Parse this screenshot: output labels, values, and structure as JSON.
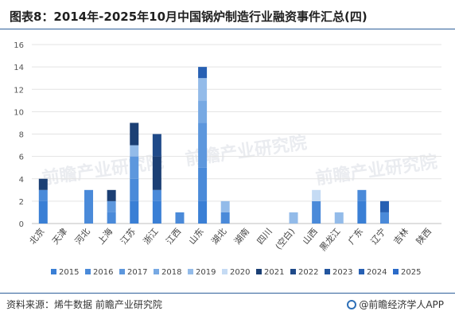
{
  "title": "图表8：2014年-2025年10月中国锅炉制造行业融资事件汇总(四)",
  "source": "资料来源：烯牛数据 前瞻产业研究院",
  "brand": "@前瞻经济学人APP",
  "watermark": "前瞻产业研究院",
  "chart_data": {
    "type": "bar",
    "stacked": true,
    "categories": [
      "北京",
      "天津",
      "河北",
      "上海",
      "江苏",
      "浙江",
      "江西",
      "山东",
      "湖北",
      "湖南",
      "四川",
      "(空白)",
      "山西",
      "黑龙江",
      "广东",
      "辽宁",
      "吉林",
      "陕西"
    ],
    "ylim": [
      0,
      16
    ],
    "yticks": [
      0,
      2,
      4,
      6,
      8,
      10,
      12,
      14,
      16
    ],
    "grid": true,
    "legend_position": "bottom",
    "series": [
      {
        "name": "2015",
        "color": "#3a7fd5",
        "values": [
          2,
          0,
          0,
          0,
          2,
          2,
          0,
          2,
          0,
          0,
          0,
          0,
          0,
          0,
          2,
          0,
          0,
          0
        ]
      },
      {
        "name": "2016",
        "color": "#4a8ad9",
        "values": [
          1,
          0,
          3,
          1,
          2,
          1,
          1,
          3,
          1,
          0,
          0,
          0,
          2,
          0,
          1,
          1,
          0,
          0
        ]
      },
      {
        "name": "2017",
        "color": "#5d97dd",
        "values": [
          0,
          0,
          0,
          1,
          2,
          0,
          0,
          4,
          0,
          0,
          0,
          0,
          0,
          0,
          0,
          0,
          0,
          0
        ]
      },
      {
        "name": "2018",
        "color": "#77a9e3",
        "values": [
          0,
          0,
          0,
          0,
          0,
          0,
          0,
          2,
          0,
          0,
          0,
          0,
          0,
          0,
          0,
          0,
          0,
          0
        ]
      },
      {
        "name": "2019",
        "color": "#93bbe9",
        "values": [
          0,
          0,
          0,
          0,
          1,
          0,
          0,
          2,
          1,
          0,
          0,
          1,
          0,
          1,
          0,
          0,
          0,
          0
        ]
      },
      {
        "name": "2020",
        "color": "#c5dbf4",
        "values": [
          0,
          0,
          0,
          0,
          0,
          0,
          0,
          0,
          0,
          0,
          0,
          0,
          1,
          0,
          0,
          0,
          0,
          0
        ]
      },
      {
        "name": "2021",
        "color": "#1b3f74",
        "values": [
          1,
          0,
          0,
          1,
          2,
          3,
          0,
          0,
          0,
          0,
          0,
          0,
          0,
          0,
          0,
          0,
          0,
          0
        ]
      },
      {
        "name": "2022",
        "color": "#1f4a89",
        "values": [
          0,
          0,
          0,
          0,
          0,
          2,
          0,
          0,
          0,
          0,
          0,
          0,
          0,
          0,
          0,
          0,
          0,
          0
        ]
      },
      {
        "name": "2023",
        "color": "#23559e",
        "values": [
          0,
          0,
          0,
          0,
          0,
          0,
          0,
          0,
          0,
          0,
          0,
          0,
          0,
          0,
          0,
          0,
          0,
          0
        ]
      },
      {
        "name": "2024",
        "color": "#2760b3",
        "values": [
          0,
          0,
          0,
          0,
          0,
          0,
          0,
          1,
          0,
          0,
          0,
          0,
          0,
          0,
          0,
          1,
          0,
          0
        ]
      },
      {
        "name": "2025",
        "color": "#2b6bc8",
        "values": [
          0,
          0,
          0,
          0,
          0,
          0,
          0,
          0,
          0,
          0,
          0,
          0,
          0,
          0,
          0,
          0,
          0,
          0
        ]
      }
    ]
  }
}
